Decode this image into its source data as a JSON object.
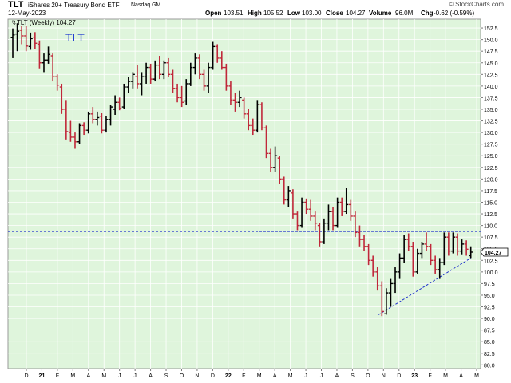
{
  "header": {
    "symbol": "TLT",
    "name": "iShares 20+ Treasury Bond ETF",
    "exchange": "Nasdaq GM",
    "date": "12-May-2023",
    "open_label": "Open",
    "open": "103.51",
    "high_label": "High",
    "high": "105.52",
    "low_label": "Low",
    "low": "103.00",
    "close_label": "Close",
    "close": "104.27",
    "volume_label": "Volume",
    "volume": "96.0M",
    "chg_label": "Chg",
    "chg": "-0.62 (-0.59%)",
    "watermark": "© StockCharts.com"
  },
  "colors": {
    "background": "#dff5dc",
    "up": "#000000",
    "down": "#c0283a",
    "line": "#2233cc",
    "close_badge": "#ffffff"
  },
  "chart_data": {
    "type": "ohlc",
    "legend": "TLT (Weekly) 104.27",
    "annotation": "TLT",
    "y_ticks": [
      80.0,
      82.5,
      85.0,
      87.5,
      90.0,
      92.5,
      95.0,
      97.5,
      100.0,
      102.5,
      105.0,
      107.5,
      110.0,
      112.5,
      115.0,
      117.5,
      120.0,
      122.5,
      125.0,
      127.5,
      130.0,
      132.5,
      135.0,
      137.5,
      140.0,
      142.5,
      145.0,
      147.5,
      150.0,
      152.5
    ],
    "y_tick_labels": [
      "80.0",
      "82.5",
      "85.0",
      "87.5",
      "90.0",
      "92.5",
      "95.0",
      "97.5",
      "100.0",
      "102.5",
      "105.0",
      "107.5",
      "110.0",
      "112.5",
      "115.0",
      "117.5",
      "120.0",
      "122.5",
      "125.0",
      "127.5",
      "130.0",
      "132.5",
      "135.0",
      "137.5",
      "140.0",
      "142.5",
      "145.0",
      "147.5",
      "150.0",
      "152.5"
    ],
    "ylim": [
      79.2,
      154.4
    ],
    "x_tick_labels": [
      "D",
      "21",
      "F",
      "M",
      "A",
      "M",
      "J",
      "J",
      "A",
      "S",
      "O",
      "N",
      "D",
      "22",
      "F",
      "M",
      "A",
      "M",
      "J",
      "J",
      "A",
      "S",
      "O",
      "N",
      "D",
      "23",
      "F",
      "M",
      "A",
      "M"
    ],
    "bold_x_labels": [
      "21",
      "22",
      "23"
    ],
    "last_close": "104.27",
    "horizontal_level": 108.7,
    "trendline": [
      [
        0.25,
        90.8
      ],
      [
        21.0,
        103.0
      ]
    ],
    "weeks": [
      {
        "o": 150.5,
        "h": 152.4,
        "l": 146.0,
        "c": 151.0
      },
      {
        "o": 151.2,
        "h": 153.5,
        "l": 147.5,
        "c": 151.8
      },
      {
        "o": 152.0,
        "h": 152.9,
        "l": 149.0,
        "c": 150.8
      },
      {
        "o": 150.8,
        "h": 153.0,
        "l": 147.5,
        "c": 148.6
      },
      {
        "o": 148.5,
        "h": 151.5,
        "l": 147.8,
        "c": 150.2
      },
      {
        "o": 150.4,
        "h": 151.6,
        "l": 148.0,
        "c": 149.2
      },
      {
        "o": 149.0,
        "h": 149.8,
        "l": 143.8,
        "c": 145.0
      },
      {
        "o": 145.0,
        "h": 147.0,
        "l": 143.0,
        "c": 145.6
      },
      {
        "o": 145.6,
        "h": 148.5,
        "l": 144.8,
        "c": 146.8
      },
      {
        "o": 146.5,
        "h": 147.0,
        "l": 141.0,
        "c": 142.0
      },
      {
        "o": 142.0,
        "h": 142.5,
        "l": 139.0,
        "c": 140.2
      },
      {
        "o": 139.8,
        "h": 140.5,
        "l": 134.0,
        "c": 135.0
      },
      {
        "o": 135.0,
        "h": 137.0,
        "l": 128.5,
        "c": 130.2
      },
      {
        "o": 130.0,
        "h": 132.5,
        "l": 128.0,
        "c": 129.0
      },
      {
        "o": 129.0,
        "h": 130.0,
        "l": 126.5,
        "c": 128.0
      },
      {
        "o": 128.0,
        "h": 132.0,
        "l": 127.5,
        "c": 131.5
      },
      {
        "o": 131.5,
        "h": 132.2,
        "l": 129.5,
        "c": 130.5
      },
      {
        "o": 130.5,
        "h": 134.5,
        "l": 129.8,
        "c": 134.0
      },
      {
        "o": 134.0,
        "h": 135.5,
        "l": 132.0,
        "c": 132.8
      },
      {
        "o": 132.8,
        "h": 134.5,
        "l": 131.5,
        "c": 133.2
      },
      {
        "o": 133.5,
        "h": 134.3,
        "l": 129.8,
        "c": 130.5
      },
      {
        "o": 130.5,
        "h": 133.5,
        "l": 130.0,
        "c": 132.8
      },
      {
        "o": 132.8,
        "h": 136.0,
        "l": 131.5,
        "c": 135.5
      },
      {
        "o": 135.0,
        "h": 138.0,
        "l": 133.8,
        "c": 136.5
      },
      {
        "o": 136.5,
        "h": 137.5,
        "l": 134.8,
        "c": 135.2
      },
      {
        "o": 135.5,
        "h": 140.5,
        "l": 135.0,
        "c": 139.8
      },
      {
        "o": 139.8,
        "h": 142.0,
        "l": 138.5,
        "c": 141.0
      },
      {
        "o": 141.0,
        "h": 143.0,
        "l": 139.5,
        "c": 142.5
      },
      {
        "o": 142.0,
        "h": 144.5,
        "l": 139.5,
        "c": 140.5
      },
      {
        "o": 140.5,
        "h": 143.0,
        "l": 138.0,
        "c": 142.0
      },
      {
        "o": 142.0,
        "h": 145.0,
        "l": 140.5,
        "c": 144.0
      },
      {
        "o": 144.0,
        "h": 144.8,
        "l": 140.5,
        "c": 141.5
      },
      {
        "o": 141.5,
        "h": 145.5,
        "l": 141.0,
        "c": 144.5
      },
      {
        "o": 144.5,
        "h": 146.5,
        "l": 141.5,
        "c": 142.5
      },
      {
        "o": 142.5,
        "h": 145.5,
        "l": 141.5,
        "c": 145.0
      },
      {
        "o": 145.0,
        "h": 146.0,
        "l": 142.0,
        "c": 142.5
      },
      {
        "o": 142.5,
        "h": 143.5,
        "l": 138.5,
        "c": 139.5
      },
      {
        "o": 139.5,
        "h": 140.5,
        "l": 136.5,
        "c": 137.5
      },
      {
        "o": 137.5,
        "h": 140.0,
        "l": 135.5,
        "c": 136.5
      },
      {
        "o": 136.8,
        "h": 141.5,
        "l": 136.0,
        "c": 140.5
      },
      {
        "o": 140.5,
        "h": 145.0,
        "l": 140.0,
        "c": 144.0
      },
      {
        "o": 144.0,
        "h": 147.0,
        "l": 142.5,
        "c": 146.0
      },
      {
        "o": 146.0,
        "h": 146.8,
        "l": 141.5,
        "c": 142.5
      },
      {
        "o": 142.5,
        "h": 143.5,
        "l": 139.0,
        "c": 140.0
      },
      {
        "o": 140.0,
        "h": 145.0,
        "l": 138.5,
        "c": 144.0
      },
      {
        "o": 144.0,
        "h": 149.5,
        "l": 143.5,
        "c": 148.5
      },
      {
        "o": 148.5,
        "h": 149.0,
        "l": 145.0,
        "c": 146.0
      },
      {
        "o": 146.0,
        "h": 147.5,
        "l": 143.5,
        "c": 144.0
      },
      {
        "o": 144.0,
        "h": 144.8,
        "l": 139.0,
        "c": 140.0
      },
      {
        "o": 140.0,
        "h": 141.0,
        "l": 136.0,
        "c": 137.0
      },
      {
        "o": 137.0,
        "h": 138.5,
        "l": 134.5,
        "c": 136.5
      },
      {
        "o": 136.5,
        "h": 139.0,
        "l": 135.5,
        "c": 137.5
      },
      {
        "o": 137.0,
        "h": 137.5,
        "l": 133.0,
        "c": 134.0
      },
      {
        "o": 134.0,
        "h": 135.0,
        "l": 130.5,
        "c": 131.5
      },
      {
        "o": 131.5,
        "h": 133.0,
        "l": 129.5,
        "c": 130.5
      },
      {
        "o": 130.5,
        "h": 137.0,
        "l": 130.0,
        "c": 136.0
      },
      {
        "o": 136.0,
        "h": 136.5,
        "l": 130.5,
        "c": 131.0
      },
      {
        "o": 131.0,
        "h": 131.5,
        "l": 124.5,
        "c": 125.5
      },
      {
        "o": 125.5,
        "h": 126.5,
        "l": 121.5,
        "c": 122.5
      },
      {
        "o": 122.5,
        "h": 127.0,
        "l": 121.5,
        "c": 125.0
      },
      {
        "o": 124.5,
        "h": 125.0,
        "l": 119.0,
        "c": 120.0
      },
      {
        "o": 120.0,
        "h": 120.5,
        "l": 114.5,
        "c": 115.5
      },
      {
        "o": 115.5,
        "h": 118.5,
        "l": 114.0,
        "c": 117.5
      },
      {
        "o": 117.0,
        "h": 117.8,
        "l": 111.5,
        "c": 112.5
      },
      {
        "o": 112.5,
        "h": 113.0,
        "l": 109.0,
        "c": 110.0
      },
      {
        "o": 110.0,
        "h": 116.0,
        "l": 109.5,
        "c": 115.0
      },
      {
        "o": 115.0,
        "h": 115.8,
        "l": 112.5,
        "c": 113.5
      },
      {
        "o": 113.5,
        "h": 115.5,
        "l": 111.0,
        "c": 112.0
      },
      {
        "o": 112.0,
        "h": 113.0,
        "l": 109.0,
        "c": 110.5
      },
      {
        "o": 110.0,
        "h": 110.5,
        "l": 105.5,
        "c": 106.5
      },
      {
        "o": 106.5,
        "h": 111.5,
        "l": 106.0,
        "c": 110.5
      },
      {
        "o": 110.5,
        "h": 114.5,
        "l": 109.0,
        "c": 113.0
      },
      {
        "o": 113.0,
        "h": 114.0,
        "l": 109.0,
        "c": 110.0
      },
      {
        "o": 110.0,
        "h": 116.0,
        "l": 109.5,
        "c": 115.0
      },
      {
        "o": 115.0,
        "h": 116.0,
        "l": 112.0,
        "c": 113.0
      },
      {
        "o": 113.0,
        "h": 118.0,
        "l": 112.5,
        "c": 114.5
      },
      {
        "o": 114.5,
        "h": 115.5,
        "l": 111.0,
        "c": 112.0
      },
      {
        "o": 112.0,
        "h": 113.0,
        "l": 107.5,
        "c": 108.5
      },
      {
        "o": 108.5,
        "h": 110.0,
        "l": 105.5,
        "c": 107.0
      },
      {
        "o": 107.0,
        "h": 108.0,
        "l": 104.5,
        "c": 105.5
      },
      {
        "o": 105.5,
        "h": 106.0,
        "l": 101.5,
        "c": 102.5
      },
      {
        "o": 102.5,
        "h": 103.5,
        "l": 99.0,
        "c": 100.0
      },
      {
        "o": 100.0,
        "h": 101.0,
        "l": 96.0,
        "c": 97.0
      },
      {
        "o": 97.0,
        "h": 98.0,
        "l": 90.5,
        "c": 91.5
      },
      {
        "o": 91.0,
        "h": 96.5,
        "l": 90.8,
        "c": 95.5
      },
      {
        "o": 95.5,
        "h": 98.5,
        "l": 92.5,
        "c": 97.5
      },
      {
        "o": 97.5,
        "h": 101.0,
        "l": 95.5,
        "c": 100.0
      },
      {
        "o": 100.0,
        "h": 104.0,
        "l": 98.5,
        "c": 103.0
      },
      {
        "o": 103.0,
        "h": 108.0,
        "l": 102.0,
        "c": 107.0
      },
      {
        "o": 107.0,
        "h": 108.3,
        "l": 104.5,
        "c": 105.5
      },
      {
        "o": 105.5,
        "h": 106.5,
        "l": 99.0,
        "c": 100.0
      },
      {
        "o": 100.0,
        "h": 105.0,
        "l": 99.5,
        "c": 104.0
      },
      {
        "o": 104.0,
        "h": 106.5,
        "l": 103.0,
        "c": 106.0
      },
      {
        "o": 106.0,
        "h": 108.5,
        "l": 104.5,
        "c": 105.5
      },
      {
        "o": 105.5,
        "h": 106.0,
        "l": 101.5,
        "c": 102.5
      },
      {
        "o": 102.5,
        "h": 103.5,
        "l": 99.5,
        "c": 100.5
      },
      {
        "o": 100.5,
        "h": 103.0,
        "l": 98.5,
        "c": 102.0
      },
      {
        "o": 102.0,
        "h": 108.5,
        "l": 101.5,
        "c": 107.5
      },
      {
        "o": 107.5,
        "h": 108.5,
        "l": 103.5,
        "c": 104.5
      },
      {
        "o": 104.5,
        "h": 108.5,
        "l": 104.0,
        "c": 107.5
      },
      {
        "o": 107.5,
        "h": 108.3,
        "l": 103.5,
        "c": 104.5
      },
      {
        "o": 104.5,
        "h": 107.0,
        "l": 103.8,
        "c": 106.0
      },
      {
        "o": 106.0,
        "h": 106.8,
        "l": 103.5,
        "c": 104.9
      },
      {
        "o": 103.51,
        "h": 105.52,
        "l": 103.0,
        "c": 104.27
      }
    ]
  }
}
